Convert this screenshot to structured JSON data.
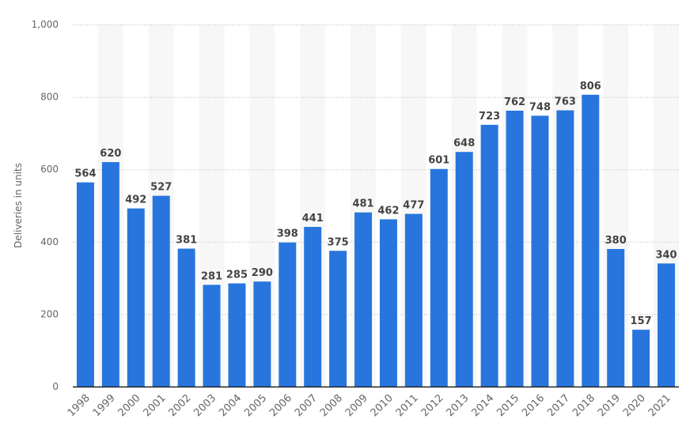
{
  "chart_data": {
    "type": "bar",
    "categories": [
      "1998",
      "1999",
      "2000",
      "2001",
      "2002",
      "2003",
      "2004",
      "2005",
      "2006",
      "2007",
      "2008",
      "2009",
      "2010",
      "2011",
      "2012",
      "2013",
      "2014",
      "2015",
      "2016",
      "2017",
      "2018",
      "2019",
      "2020",
      "2021"
    ],
    "values": [
      564,
      620,
      492,
      527,
      381,
      281,
      285,
      290,
      398,
      441,
      375,
      481,
      462,
      477,
      601,
      648,
      723,
      762,
      748,
      763,
      806,
      380,
      157,
      340
    ],
    "title": "",
    "xlabel": "",
    "ylabel": "Deliveries in units",
    "ylim": [
      0,
      1000
    ],
    "yticks": [
      0,
      200,
      400,
      600,
      800,
      1000
    ],
    "ytick_labels": [
      "0",
      "200",
      "400",
      "600",
      "800",
      "1,000"
    ],
    "grid": true,
    "data_labels": true,
    "bar_color": "#2876dd",
    "band_color": "#f7f7f7"
  }
}
